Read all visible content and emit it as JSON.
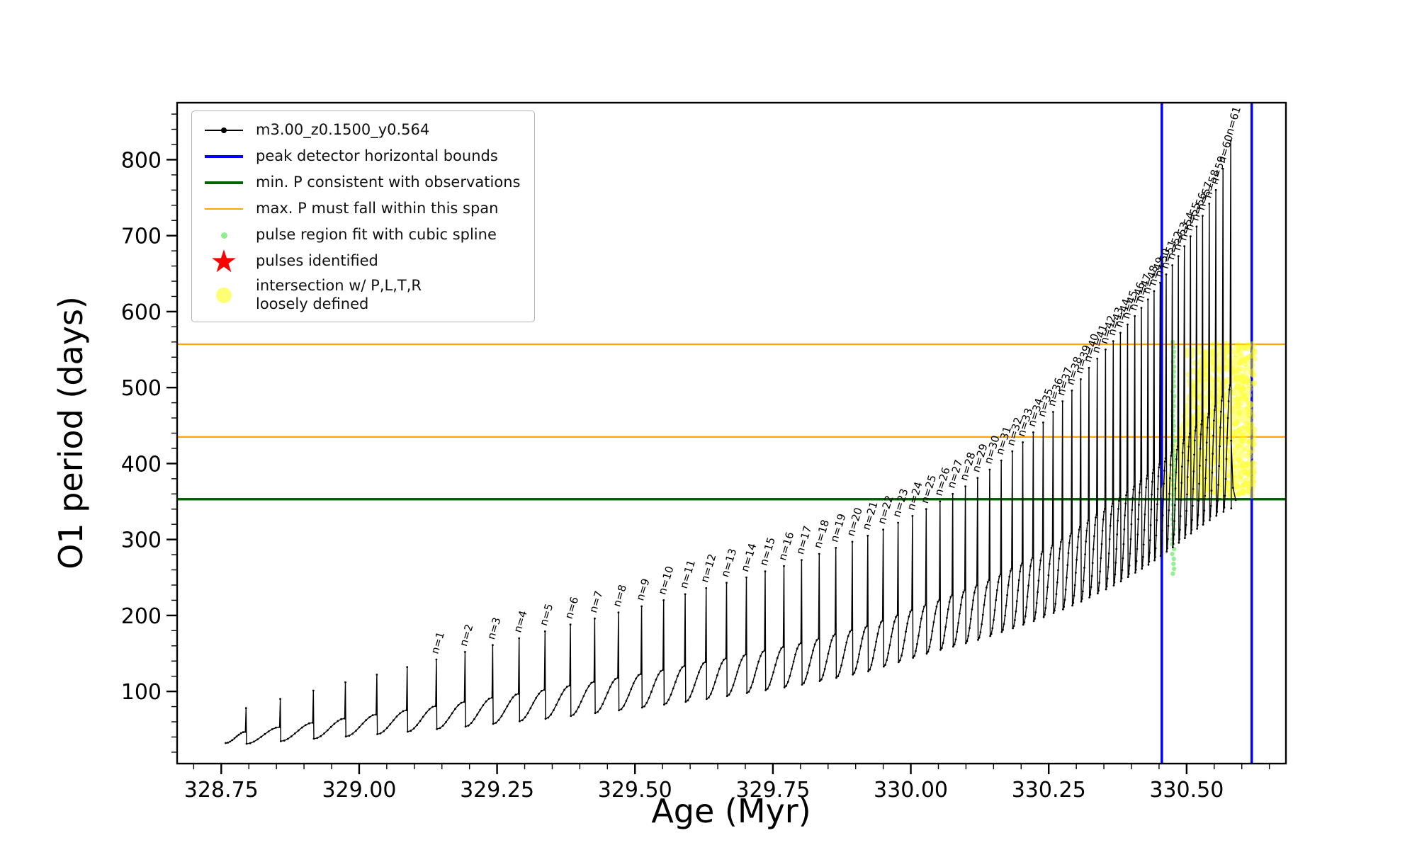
{
  "figure": {
    "background": "#ffffff"
  },
  "icons": {
    "star": "★"
  },
  "legend": {
    "star_color": "#ff0000",
    "items": [
      {
        "label": "m3.00_z0.1500_y0.564"
      },
      {
        "label": "peak detector horizontal bounds"
      },
      {
        "label": "min. P consistent with observations"
      },
      {
        "label": "max. P must fall within this span"
      },
      {
        "label": "pulse region fit with cubic spline"
      },
      {
        "label": "pulses identified"
      },
      {
        "label": "intersection w/ P,L,T,R",
        "label2": "loosely defined"
      }
    ]
  },
  "chart_data": {
    "type": "line",
    "title": "",
    "xlabel": "Age (Myr)",
    "ylabel": "O1 period (days)",
    "xlim": [
      328.67,
      330.68
    ],
    "ylim": [
      5,
      875
    ],
    "xticks": [
      328.75,
      329.0,
      329.25,
      329.5,
      329.75,
      330.0,
      330.25,
      330.5
    ],
    "x_minor_step": 0.05,
    "yticks": [
      100,
      200,
      300,
      400,
      500,
      600,
      700,
      800
    ],
    "y_minor_step": 20,
    "pulse_label_prefix": "n=",
    "vlines": {
      "color": "#0000ff",
      "width": 3.5,
      "x": [
        330.455,
        330.618
      ]
    },
    "hlines": [
      {
        "name": "min-p-consistent-line",
        "y": 353,
        "color": "#006400",
        "width": 3.5
      },
      {
        "name": "max-p-span-lower-line",
        "y": 435,
        "color": "#ffa500",
        "width": 2.2
      },
      {
        "name": "max-p-span-upper-line",
        "y": 557,
        "color": "#ffa500",
        "width": 2.2
      }
    ],
    "yellow_region": {
      "color": "#ffff00",
      "opacity": 0.45,
      "radius": 4.2,
      "count": 900,
      "core_count": 350,
      "x_min": 330.458,
      "x_max": 330.623,
      "core_x_min": 330.5,
      "y_min": 357,
      "y_top_max": 558,
      "ramp_start": 330.455,
      "ramp_slope": 2600
    },
    "green_strip": {
      "color": "#90ee90",
      "opacity": 0.95,
      "radius": 3.2,
      "count": 48,
      "x_center": 330.476,
      "x_jitter": 0.004,
      "y_min": 255,
      "y_max": 560
    },
    "curve": {
      "color": "#000000",
      "width": 1.4,
      "marker_radius": 1.4,
      "shoulder_frac": 0.32,
      "start": [
        328.758,
        32
      ],
      "tail": [
        [
          330.5807,
          430
        ],
        [
          330.584,
          368
        ],
        [
          330.589,
          352
        ]
      ],
      "baseline": [
        [
          328.758,
          30
        ],
        [
          328.9,
          38
        ],
        [
          329.05,
          46
        ],
        [
          329.2,
          56
        ],
        [
          329.35,
          67
        ],
        [
          329.5,
          80
        ],
        [
          329.65,
          95
        ],
        [
          329.8,
          112
        ],
        [
          329.92,
          130
        ],
        [
          330.03,
          155
        ],
        [
          330.13,
          175
        ],
        [
          330.22,
          198
        ],
        [
          330.3,
          222
        ],
        [
          330.37,
          248
        ],
        [
          330.43,
          275
        ],
        [
          330.48,
          302
        ],
        [
          330.52,
          325
        ],
        [
          330.56,
          345
        ],
        [
          330.6,
          358
        ]
      ],
      "pulses": [
        [
          328.795,
          78,
          null
        ],
        [
          328.857,
          90,
          null
        ],
        [
          328.917,
          101,
          null
        ],
        [
          328.975,
          112,
          null
        ],
        [
          329.032,
          122,
          null
        ],
        [
          329.087,
          132,
          null
        ],
        [
          329.14,
          142,
          1
        ],
        [
          329.192,
          152,
          2
        ],
        [
          329.242,
          161,
          3
        ],
        [
          329.29,
          170,
          4
        ],
        [
          329.337,
          179,
          5
        ],
        [
          329.383,
          188,
          6
        ],
        [
          329.427,
          196,
          7
        ],
        [
          329.47,
          204,
          8
        ],
        [
          329.512,
          212,
          9
        ],
        [
          329.552,
          220,
          10
        ],
        [
          329.591,
          228,
          11
        ],
        [
          329.629,
          236,
          12
        ],
        [
          329.666,
          243,
          13
        ],
        [
          329.702,
          250,
          14
        ],
        [
          329.736,
          258,
          15
        ],
        [
          329.77,
          265,
          16
        ],
        [
          329.802,
          273,
          17
        ],
        [
          329.834,
          281,
          18
        ],
        [
          329.864,
          289,
          19
        ],
        [
          329.894,
          297,
          20
        ],
        [
          329.922,
          305,
          21
        ],
        [
          329.95,
          313,
          22
        ],
        [
          329.977,
          322,
          23
        ],
        [
          330.003,
          331,
          24
        ],
        [
          330.028,
          340,
          25
        ],
        [
          330.053,
          350,
          26
        ],
        [
          330.076,
          360,
          27
        ],
        [
          330.099,
          370,
          28
        ],
        [
          330.121,
          381,
          29
        ],
        [
          330.143,
          392,
          30
        ],
        [
          330.164,
          404,
          31
        ],
        [
          330.184,
          416,
          32
        ],
        [
          330.203,
          428,
          33
        ],
        [
          330.222,
          441,
          34
        ],
        [
          330.24,
          454,
          35
        ],
        [
          330.258,
          468,
          36
        ],
        [
          330.275,
          482,
          37
        ],
        [
          330.292,
          496,
          38
        ],
        [
          330.308,
          511,
          39
        ],
        [
          330.323,
          526,
          40
        ],
        [
          330.338,
          538,
          41
        ],
        [
          330.353,
          550,
          42
        ],
        [
          330.367,
          561,
          43
        ],
        [
          330.38,
          572,
          44
        ],
        [
          330.393,
          583,
          45
        ],
        [
          330.406,
          594,
          46
        ],
        [
          330.418,
          605,
          47
        ],
        [
          330.43,
          616,
          48
        ],
        [
          330.441,
          627,
          49
        ],
        [
          330.452,
          638,
          50
        ],
        [
          330.463,
          649,
          51
        ],
        [
          330.474,
          661,
          52
        ],
        [
          330.485,
          673,
          53
        ],
        [
          330.496,
          686,
          54
        ],
        [
          330.507,
          699,
          55
        ],
        [
          330.518,
          712,
          56
        ],
        [
          330.529,
          726,
          57
        ],
        [
          330.541,
          742,
          58
        ],
        [
          330.553,
          760,
          59
        ],
        [
          330.566,
          788,
          60
        ],
        [
          330.58,
          825,
          61
        ]
      ]
    }
  }
}
